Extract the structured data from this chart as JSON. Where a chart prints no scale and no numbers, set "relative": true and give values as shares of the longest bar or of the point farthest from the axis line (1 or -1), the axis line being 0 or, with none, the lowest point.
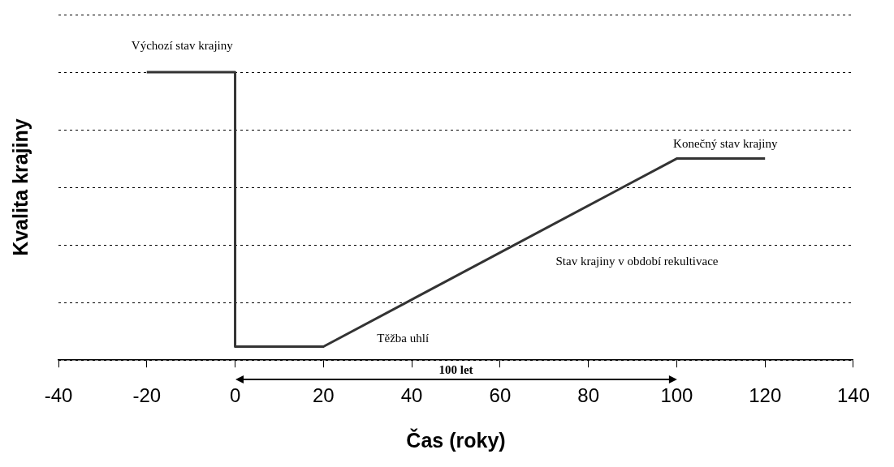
{
  "chart_data": {
    "type": "line",
    "relative": true,
    "xlabel": "Čas (roky)",
    "ylabel": "Kvalita krajiny",
    "xlim": [
      -40,
      140
    ],
    "xticks": [
      -40,
      -20,
      0,
      20,
      40,
      60,
      80,
      100,
      120,
      140
    ],
    "x": [
      -20,
      0,
      0,
      20,
      100,
      120
    ],
    "series": [
      {
        "color": "#333333",
        "values": [
          1,
          1,
          0.047,
          0.047,
          0.7,
          0.7
        ]
      }
    ],
    "grid": "y",
    "marker": "none",
    "line_style": "solid",
    "legend": false,
    "annotations": [
      "Výchozí stav krajiny",
      "Konečný stav krajiny",
      "Stav krajiny v období rekultivace",
      "Těžba uhlí",
      "100 let"
    ]
  }
}
